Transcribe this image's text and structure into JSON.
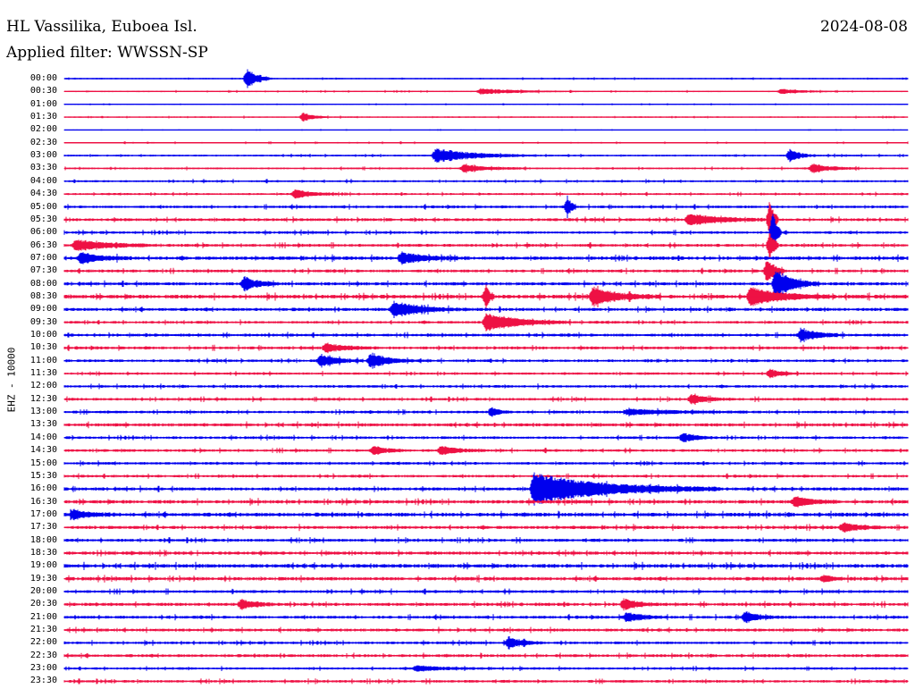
{
  "header": {
    "station": "HL Vassilika, Euboea Isl.",
    "filter": "Applied filter: WWSSN-SP",
    "date": "2024-08-08"
  },
  "channel_label": "EHZ - 10000",
  "colors": {
    "even_rows": "#0000ee",
    "odd_rows": "#ee1144",
    "background": "#ffffff"
  },
  "chart_data": {
    "type": "line",
    "x_unit": "minutes",
    "row_span_minutes": 30,
    "row_labels": [
      "00:00",
      "00:30",
      "01:00",
      "01:30",
      "02:00",
      "02:30",
      "03:00",
      "03:30",
      "04:00",
      "04:30",
      "05:00",
      "05:30",
      "06:00",
      "06:30",
      "07:00",
      "07:30",
      "08:00",
      "08:30",
      "09:00",
      "09:30",
      "10:00",
      "10:30",
      "11:00",
      "11:30",
      "12:00",
      "12:30",
      "13:00",
      "13:30",
      "14:00",
      "14:30",
      "15:00",
      "15:30",
      "16:00",
      "16:30",
      "17:00",
      "17:30",
      "18:00",
      "18:30",
      "19:00",
      "19:30",
      "20:00",
      "20:30",
      "21:00",
      "21:30",
      "22:00",
      "22:30",
      "23:00",
      "23:30"
    ],
    "noise_level": [
      0.5,
      0.5,
      0.4,
      0.5,
      0.3,
      0.5,
      0.7,
      0.7,
      0.8,
      0.8,
      1.0,
      1.1,
      1.0,
      1.1,
      1.3,
      1.1,
      1.2,
      1.4,
      1.2,
      1.0,
      1.1,
      1.1,
      1.0,
      0.9,
      1.0,
      1.0,
      1.0,
      1.2,
      1.0,
      1.0,
      1.0,
      1.0,
      1.2,
      1.3,
      1.4,
      1.2,
      1.1,
      1.2,
      1.4,
      1.3,
      1.1,
      1.2,
      1.1,
      1.1,
      1.0,
      1.1,
      0.9,
      1.0
    ],
    "events": [
      {
        "row": 0,
        "minute": 6.5,
        "amp": 11,
        "dur": 0.3
      },
      {
        "row": 1,
        "minute": 14.8,
        "amp": 3,
        "dur": 1.2
      },
      {
        "row": 1,
        "minute": 25.5,
        "amp": 3,
        "dur": 0.6
      },
      {
        "row": 3,
        "minute": 8.5,
        "amp": 5,
        "dur": 0.3
      },
      {
        "row": 6,
        "minute": 13.2,
        "amp": 8,
        "dur": 1.2
      },
      {
        "row": 6,
        "minute": 25.8,
        "amp": 7,
        "dur": 0.3
      },
      {
        "row": 7,
        "minute": 14.2,
        "amp": 4,
        "dur": 0.8
      },
      {
        "row": 7,
        "minute": 26.6,
        "amp": 5,
        "dur": 0.6
      },
      {
        "row": 9,
        "minute": 8.2,
        "amp": 5,
        "dur": 0.5
      },
      {
        "row": 10,
        "minute": 17.9,
        "amp": 12,
        "dur": 0.1
      },
      {
        "row": 11,
        "minute": 22.2,
        "amp": 6,
        "dur": 1.0
      },
      {
        "row": 11,
        "minute": 25.1,
        "amp": 22,
        "dur": 0.1
      },
      {
        "row": 12,
        "minute": 25.2,
        "amp": 24,
        "dur": 0.1
      },
      {
        "row": 13,
        "minute": 0.4,
        "amp": 6,
        "dur": 1.0
      },
      {
        "row": 13,
        "minute": 25.1,
        "amp": 16,
        "dur": 0.1
      },
      {
        "row": 14,
        "minute": 0.6,
        "amp": 6,
        "dur": 0.6
      },
      {
        "row": 14,
        "minute": 12.0,
        "amp": 6,
        "dur": 0.8
      },
      {
        "row": 15,
        "minute": 25.0,
        "amp": 14,
        "dur": 0.2
      },
      {
        "row": 16,
        "minute": 6.4,
        "amp": 8,
        "dur": 0.4
      },
      {
        "row": 16,
        "minute": 25.3,
        "amp": 16,
        "dur": 0.5
      },
      {
        "row": 17,
        "minute": 18.8,
        "amp": 10,
        "dur": 0.8
      },
      {
        "row": 17,
        "minute": 24.4,
        "amp": 10,
        "dur": 1.0
      },
      {
        "row": 17,
        "minute": 15.0,
        "amp": 12,
        "dur": 0.1
      },
      {
        "row": 18,
        "minute": 11.7,
        "amp": 9,
        "dur": 0.8
      },
      {
        "row": 19,
        "minute": 15.0,
        "amp": 10,
        "dur": 1.0
      },
      {
        "row": 20,
        "minute": 26.2,
        "amp": 7,
        "dur": 0.5
      },
      {
        "row": 21,
        "minute": 9.3,
        "amp": 5,
        "dur": 0.6
      },
      {
        "row": 22,
        "minute": 9.1,
        "amp": 7,
        "dur": 0.5
      },
      {
        "row": 22,
        "minute": 10.9,
        "amp": 9,
        "dur": 0.5
      },
      {
        "row": 23,
        "minute": 25.1,
        "amp": 5,
        "dur": 0.3
      },
      {
        "row": 25,
        "minute": 22.3,
        "amp": 5,
        "dur": 0.5
      },
      {
        "row": 26,
        "minute": 15.2,
        "amp": 5,
        "dur": 0.2
      },
      {
        "row": 26,
        "minute": 20.0,
        "amp": 3,
        "dur": 1.5
      },
      {
        "row": 28,
        "minute": 22.0,
        "amp": 5,
        "dur": 0.4
      },
      {
        "row": 29,
        "minute": 11.0,
        "amp": 5,
        "dur": 0.4
      },
      {
        "row": 29,
        "minute": 13.4,
        "amp": 5,
        "dur": 0.5
      },
      {
        "row": 32,
        "minute": 16.7,
        "amp": 18,
        "dur": 2.2
      },
      {
        "row": 33,
        "minute": 26.0,
        "amp": 6,
        "dur": 0.5
      },
      {
        "row": 34,
        "minute": 0.3,
        "amp": 5,
        "dur": 0.5
      },
      {
        "row": 35,
        "minute": 27.7,
        "amp": 5,
        "dur": 0.5
      },
      {
        "row": 39,
        "minute": 27.0,
        "amp": 3,
        "dur": 0.4
      },
      {
        "row": 41,
        "minute": 6.3,
        "amp": 5,
        "dur": 0.4
      },
      {
        "row": 41,
        "minute": 19.9,
        "amp": 6,
        "dur": 0.4
      },
      {
        "row": 42,
        "minute": 20.0,
        "amp": 5,
        "dur": 0.5
      },
      {
        "row": 42,
        "minute": 24.2,
        "amp": 6,
        "dur": 0.4
      },
      {
        "row": 44,
        "minute": 15.8,
        "amp": 7,
        "dur": 0.4
      },
      {
        "row": 46,
        "minute": 12.5,
        "amp": 3,
        "dur": 0.8
      }
    ]
  }
}
